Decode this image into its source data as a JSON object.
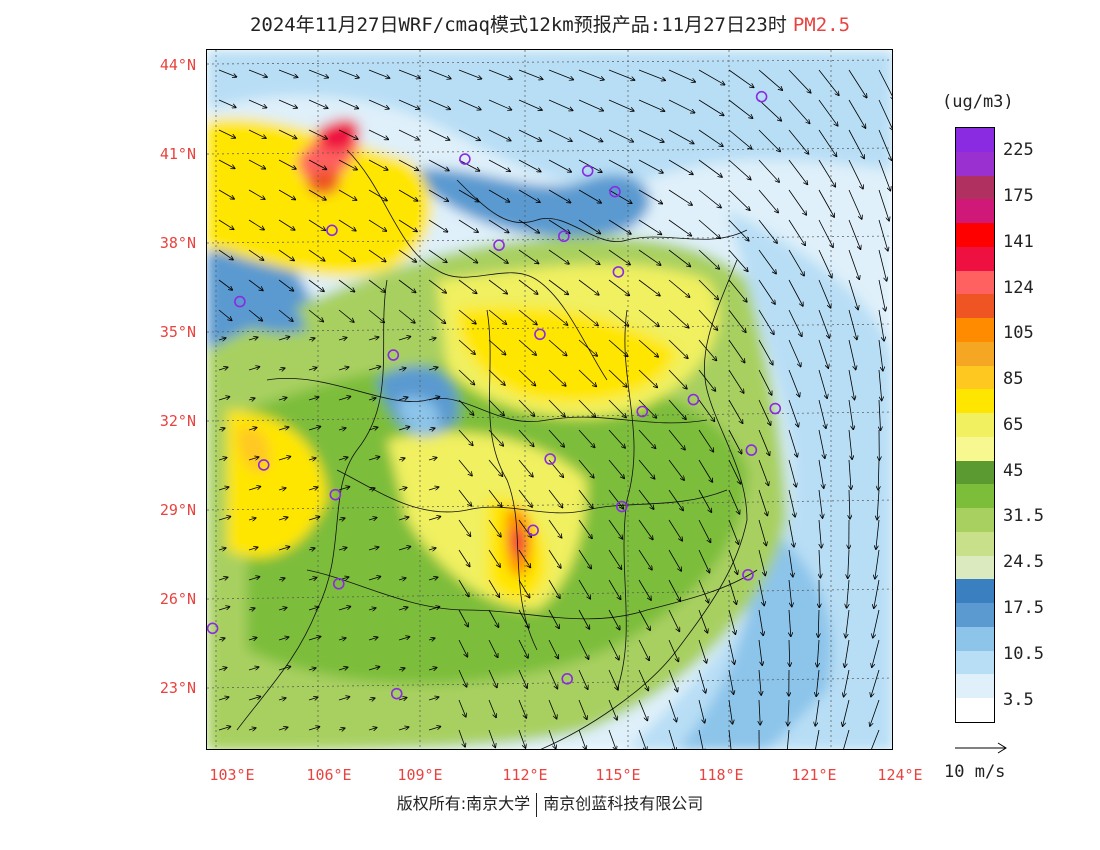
{
  "title": {
    "main": "2024年11月27日WRF/cmaq模式12km预报产品:11月27日23时",
    "pollutant": "PM2.5"
  },
  "axes": {
    "lat_labels": [
      "44°N",
      "41°N",
      "38°N",
      "35°N",
      "32°N",
      "29°N",
      "26°N",
      "23°N"
    ],
    "lon_labels": [
      "103°E",
      "106°E",
      "109°E",
      "112°E",
      "115°E",
      "118°E",
      "121°E",
      "124°E"
    ]
  },
  "colorbar": {
    "unit": "(ug/m3)",
    "colors": [
      "#8a2be2",
      "#9b30d0",
      "#b03060",
      "#d01878",
      "#ff0000",
      "#ee1040",
      "#ff6060",
      "#ee5522",
      "#ff8c00",
      "#f5a623",
      "#ffc820",
      "#ffe600",
      "#f0f060",
      "#f8f890",
      "#5a9a30",
      "#7cbd3a",
      "#a8d060",
      "#c8e08a",
      "#dceac0",
      "#3a7fbf",
      "#5a9ad0",
      "#8cc4ea",
      "#b8def5",
      "#dff0fa",
      "#ffffff"
    ],
    "labels": [
      "225",
      "175",
      "141",
      "124",
      "105",
      "85",
      "65",
      "45",
      "31.5",
      "24.5",
      "17.5",
      "10.5",
      "3.5"
    ]
  },
  "wind_reference": "10 m/s",
  "cities": [
    {
      "lon": 119.0,
      "lat": 42.9
    },
    {
      "lon": 110.3,
      "lat": 40.8
    },
    {
      "lon": 113.9,
      "lat": 40.4
    },
    {
      "lon": 114.7,
      "lat": 39.7
    },
    {
      "lon": 106.4,
      "lat": 38.4
    },
    {
      "lon": 111.3,
      "lat": 37.9
    },
    {
      "lon": 113.2,
      "lat": 38.2
    },
    {
      "lon": 114.8,
      "lat": 37.0
    },
    {
      "lon": 103.7,
      "lat": 36.0
    },
    {
      "lon": 112.5,
      "lat": 34.9
    },
    {
      "lon": 108.2,
      "lat": 34.2
    },
    {
      "lon": 115.5,
      "lat": 32.3
    },
    {
      "lon": 117.0,
      "lat": 32.7
    },
    {
      "lon": 119.4,
      "lat": 32.4
    },
    {
      "lon": 118.7,
      "lat": 31.0
    },
    {
      "lon": 104.4,
      "lat": 30.5
    },
    {
      "lon": 106.5,
      "lat": 29.5
    },
    {
      "lon": 112.8,
      "lat": 30.7
    },
    {
      "lon": 114.9,
      "lat": 29.1
    },
    {
      "lon": 112.3,
      "lat": 28.3
    },
    {
      "lon": 106.6,
      "lat": 26.5
    },
    {
      "lon": 118.6,
      "lat": 26.8
    },
    {
      "lon": 102.9,
      "lat": 25.0
    },
    {
      "lon": 108.3,
      "lat": 22.8
    },
    {
      "lon": 113.3,
      "lat": 23.3
    }
  ],
  "copyright": {
    "left": "版权所有:南京大学",
    "right": "南京创蓝科技有限公司"
  }
}
